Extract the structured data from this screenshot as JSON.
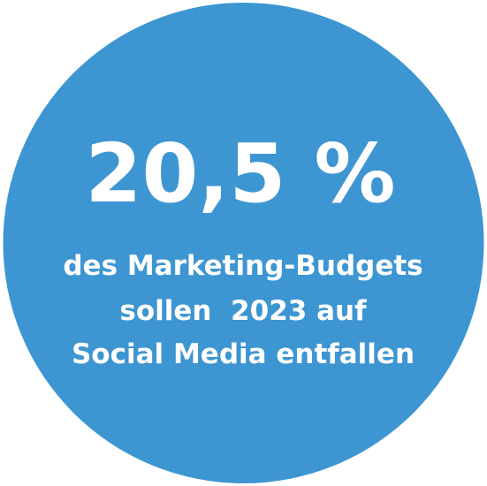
{
  "headline": "20,5 %",
  "lines": [
    "des Marketing-Budgets",
    "sollen  2023 auf",
    "Social Media entfallen"
  ]
}
